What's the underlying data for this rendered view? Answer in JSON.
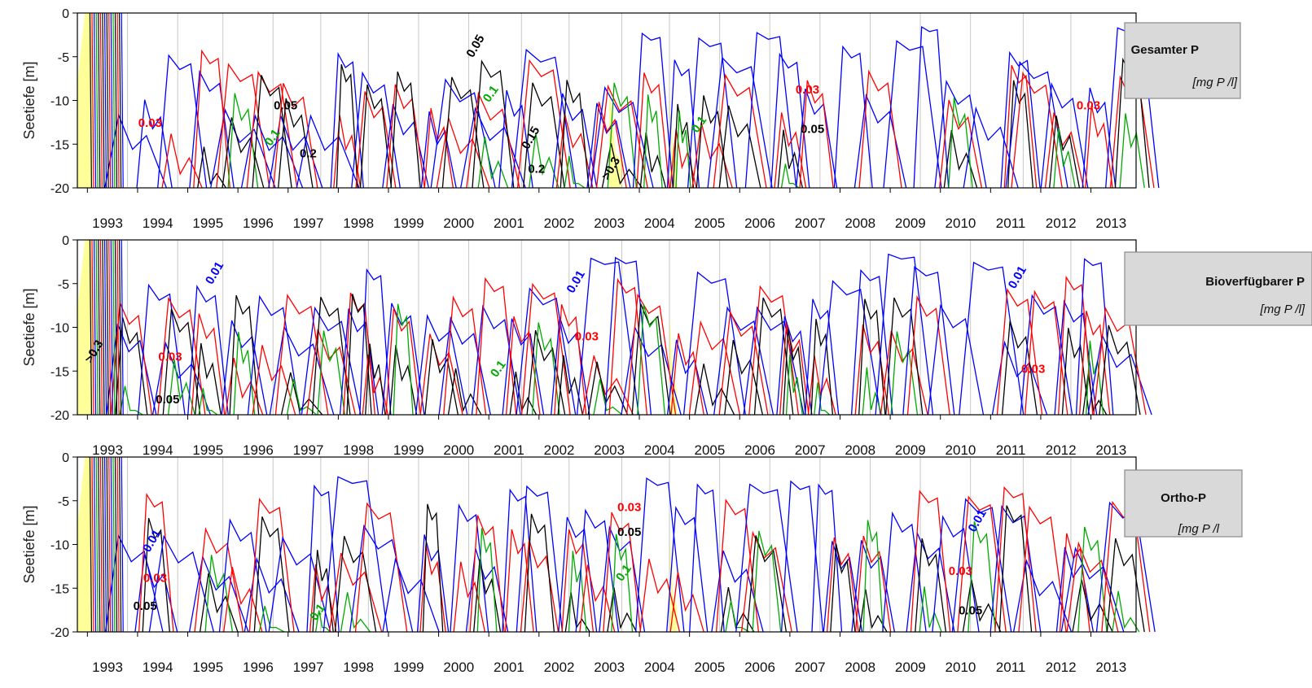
{
  "chart_data": [
    {
      "type": "contour",
      "title": "Gesamter P",
      "unit": "[mg P /l]",
      "ylabel": "Seetiefe [m]",
      "ylim": [
        -20,
        0
      ],
      "yticks": [
        "0",
        "-5",
        "-10",
        "-15",
        "-20"
      ],
      "x_categories": [
        "1993",
        "1994",
        "1995",
        "1996",
        "1997",
        "1998",
        "1999",
        "2000",
        "2001",
        "2002",
        "2003",
        "2004",
        "2005",
        "2006",
        "2007",
        "2008",
        "2009",
        "2010",
        "2011",
        "2012",
        "2013"
      ],
      "contour_levels": [
        {
          "label": "0.01",
          "color": "#0000ff"
        },
        {
          "label": "0.03",
          "color": "#ff0000"
        },
        {
          "label": "0.05",
          "color": "#000000"
        },
        {
          "label": "0.1",
          "color": "#00aa00"
        },
        {
          "label": "0.15",
          "color": "#000000"
        },
        {
          "label": "0.2",
          "color": "#000000"
        },
        {
          "label": ">0.3",
          "color": "#ffff99"
        }
      ],
      "contour_labels": [
        {
          "text": "0.05",
          "year": 2000.75,
          "depth": -4,
          "color": "#000000"
        },
        {
          "text": "0.03",
          "year": 2007.3,
          "depth": -9.2,
          "color": "#ff0000"
        },
        {
          "text": "0.03",
          "year": 2012.9,
          "depth": -11,
          "color": "#ff0000"
        },
        {
          "text": "0.05",
          "year": 1996.9,
          "depth": -11,
          "color": "#000000"
        },
        {
          "text": "0.1",
          "year": 2001.05,
          "depth": -9.5,
          "color": "#00aa00"
        },
        {
          "text": "0.03",
          "year": 1994.2,
          "depth": -13,
          "color": "#ff0000"
        },
        {
          "text": "0.1",
          "year": 1996.7,
          "depth": -14.5,
          "color": "#00aa00"
        },
        {
          "text": "0.1",
          "year": 2005.2,
          "depth": -13,
          "color": "#00aa00"
        },
        {
          "text": "0.05",
          "year": 2007.4,
          "depth": -13.7,
          "color": "#000000"
        },
        {
          "text": "0.15",
          "year": 2001.85,
          "depth": -14.5,
          "color": "#000000"
        },
        {
          "text": "0.2",
          "year": 1997.35,
          "depth": -16.5,
          "color": "#000000"
        },
        {
          "text": "0.2",
          "year": 2001.9,
          "depth": -18.3,
          "color": "#000000"
        },
        {
          "text": ">0.3",
          "year": 2003.45,
          "depth": -18,
          "color": "#000000"
        }
      ],
      "highlight_regions": [
        {
          "from": 1992.75,
          "to": 1993.05,
          "level": ">0.3"
        },
        {
          "from": 2003.35,
          "to": 2003.6,
          "level": ">0.3"
        },
        {
          "from": 2004.55,
          "to": 2004.7,
          "level": ">0.3"
        }
      ]
    },
    {
      "type": "contour",
      "title": "Bioverfügbarer P",
      "unit": "[mg P /l]",
      "ylabel": "Seetiefe [m]",
      "ylim": [
        -20,
        0
      ],
      "yticks": [
        "0",
        "-5",
        "-10",
        "-15",
        "-20"
      ],
      "x_categories": [
        "1993",
        "1994",
        "1995",
        "1996",
        "1997",
        "1998",
        "1999",
        "2000",
        "2001",
        "2002",
        "2003",
        "2004",
        "2005",
        "2006",
        "2007",
        "2008",
        "2009",
        "2010",
        "2011",
        "2012",
        "2013"
      ],
      "contour_levels": [
        {
          "label": "0.01",
          "color": "#0000ff"
        },
        {
          "label": "0.03",
          "color": "#ff0000"
        },
        {
          "label": "0.05",
          "color": "#000000"
        },
        {
          "label": "0.1",
          "color": "#00aa00"
        },
        {
          "label": ">0.3",
          "color": "#ffff99"
        }
      ],
      "contour_labels": [
        {
          "text": "0.01",
          "year": 1995.55,
          "depth": -4,
          "color": "#0000ff"
        },
        {
          "text": "0.01",
          "year": 2002.75,
          "depth": -5,
          "color": "#0000ff"
        },
        {
          "text": "0.01",
          "year": 2011.55,
          "depth": -4.5,
          "color": "#0000ff"
        },
        {
          "text": ">0.3",
          "year": 1993.15,
          "depth": -13,
          "color": "#000000"
        },
        {
          "text": "0.03",
          "year": 1994.6,
          "depth": -13.8,
          "color": "#ff0000"
        },
        {
          "text": "0.03",
          "year": 2002.9,
          "depth": -11.5,
          "color": "#ff0000"
        },
        {
          "text": "0.03",
          "year": 2011.8,
          "depth": -15.2,
          "color": "#ff0000"
        },
        {
          "text": "0.1",
          "year": 2001.2,
          "depth": -15,
          "color": "#00aa00"
        },
        {
          "text": "0.05",
          "year": 1994.55,
          "depth": -18.7,
          "color": "#000000"
        }
      ],
      "highlight_regions": [
        {
          "from": 1992.75,
          "to": 1993.05,
          "level": ">0.3"
        },
        {
          "from": 2004.55,
          "to": 2004.7,
          "level": ">0.3"
        }
      ]
    },
    {
      "type": "contour",
      "title": "Ortho-P",
      "unit": "[mg P /l",
      "ylabel": "Seetiefe [m]",
      "ylim": [
        -20,
        0
      ],
      "yticks": [
        "0",
        "-5",
        "-10",
        "-15",
        "-20"
      ],
      "x_categories": [
        "1993",
        "1994",
        "1995",
        "1996",
        "1997",
        "1998",
        "1999",
        "2000",
        "2001",
        "2002",
        "2003",
        "2004",
        "2005",
        "2006",
        "2007",
        "2008",
        "2009",
        "2010",
        "2011",
        "2012",
        "2013"
      ],
      "contour_levels": [
        {
          "label": "0.01",
          "color": "#0000ff"
        },
        {
          "label": "0.03",
          "color": "#ff0000"
        },
        {
          "label": "0.05",
          "color": "#000000"
        },
        {
          "label": "0.1",
          "color": "#00aa00"
        },
        {
          "label": ">0.3",
          "color": "#ffff99"
        }
      ],
      "contour_labels": [
        {
          "text": "0.03",
          "year": 2003.75,
          "depth": -6.2,
          "color": "#ff0000"
        },
        {
          "text": "0.01",
          "year": 2010.75,
          "depth": -7.5,
          "color": "#0000ff"
        },
        {
          "text": "0.05",
          "year": 2003.75,
          "depth": -9,
          "color": "#000000"
        },
        {
          "text": "0.01",
          "year": 1994.3,
          "depth": -9.8,
          "color": "#0000ff"
        },
        {
          "text": "0.03",
          "year": 1994.3,
          "depth": -14.3,
          "color": "#ff0000"
        },
        {
          "text": "0.1",
          "year": 2003.7,
          "depth": -13.5,
          "color": "#00aa00"
        },
        {
          "text": "0.03",
          "year": 2010.35,
          "depth": -13.5,
          "color": "#ff0000"
        },
        {
          "text": "0.05",
          "year": 1994.1,
          "depth": -17.5,
          "color": "#000000"
        },
        {
          "text": "0.1",
          "year": 1997.6,
          "depth": -18,
          "color": "#00aa00"
        },
        {
          "text": "0.05",
          "year": 2010.55,
          "depth": -18,
          "color": "#000000"
        }
      ],
      "highlight_regions": [
        {
          "from": 1992.75,
          "to": 1993.05,
          "level": ">0.3"
        },
        {
          "from": 2004.55,
          "to": 2004.7,
          "level": ">0.3"
        }
      ]
    }
  ]
}
